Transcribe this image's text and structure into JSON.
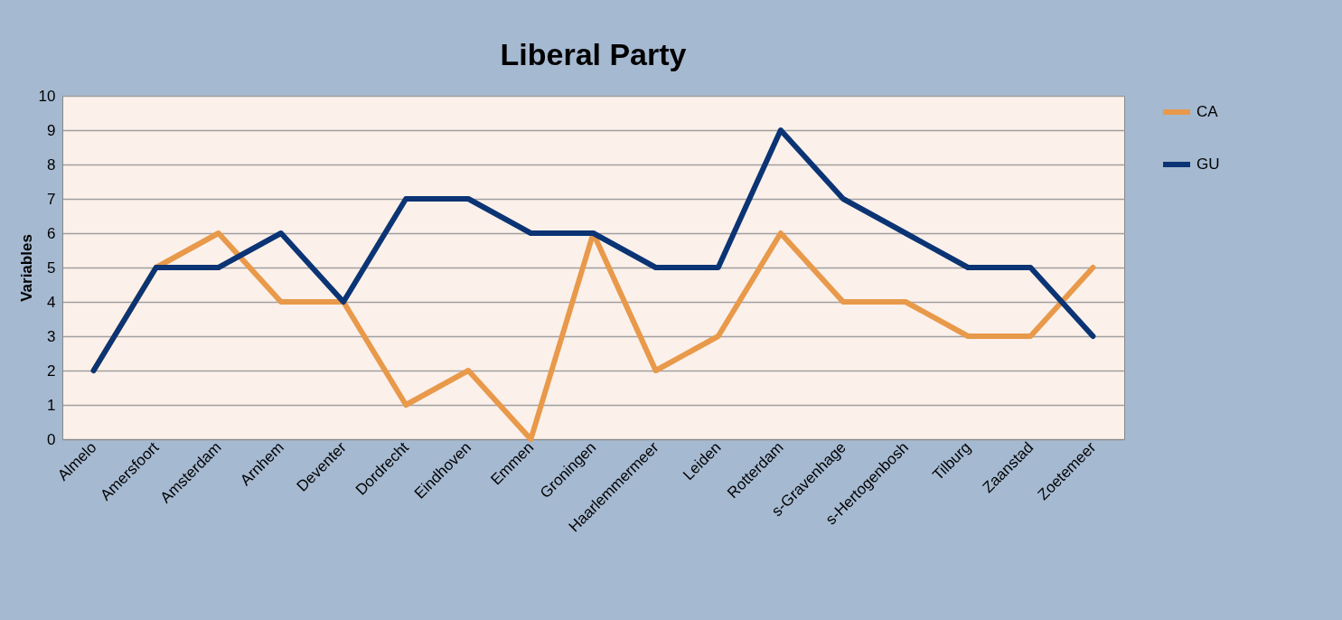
{
  "chart_data": {
    "type": "line",
    "title": "Liberal Party",
    "ylabel": "Variables",
    "categories": [
      "Almelo",
      "Amersfoort",
      "Amsterdam",
      "Arnhem",
      "Deventer",
      "Dordrecht",
      "Eindhoven",
      "Emmen",
      "Groningen",
      "Haarlemmermeer",
      "Leiden",
      "Rotterdam",
      "s-Gravenhage",
      "s-Hertogenbosh",
      "Tilburg",
      "Zaanstad",
      "Zoetemeer"
    ],
    "series": [
      {
        "name": "CA",
        "color": "#e8994a",
        "values": [
          2,
          5,
          6,
          4,
          4,
          1,
          2,
          0,
          6,
          2,
          3,
          6,
          4,
          4,
          3,
          3,
          5
        ]
      },
      {
        "name": "GU",
        "color": "#0b3474",
        "values": [
          2,
          5,
          5,
          6,
          4,
          7,
          7,
          6,
          6,
          5,
          5,
          9,
          7,
          6,
          5,
          5,
          3
        ]
      }
    ],
    "ylim": [
      0,
      10
    ],
    "yticks": [
      0,
      1,
      2,
      3,
      4,
      5,
      6,
      7,
      8,
      9,
      10
    ],
    "grid": "y",
    "legend": "right"
  }
}
